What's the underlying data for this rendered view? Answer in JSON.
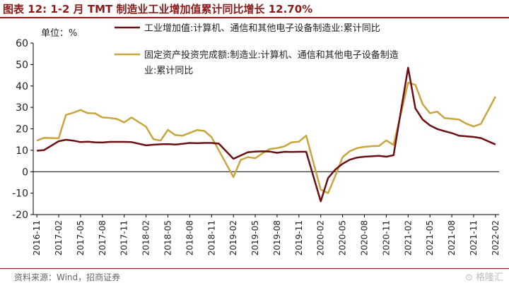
{
  "title": "图表 12:  1-2 月 TMT 制造业工业增加值累计同比增长 12.70%",
  "source": "资料来源：Wind，招商证券",
  "watermark": "⊙ 格隆汇",
  "colors": {
    "series1": "#6B0F13",
    "series2": "#C9A53E",
    "accent": "#8B1A1A"
  },
  "chart_data": {
    "type": "line",
    "ylabel": "单位：%",
    "ylim": [
      -20,
      60
    ],
    "yticks": [
      -20,
      -10,
      0,
      10,
      20,
      30,
      40,
      50,
      60
    ],
    "xticks": [
      "2016-11",
      "2017-02",
      "2017-05",
      "2017-08",
      "2017-11",
      "2018-02",
      "2018-05",
      "2018-08",
      "2018-11",
      "2019-02",
      "2019-05",
      "2019-08",
      "2019-11",
      "2020-02",
      "2020-05",
      "2020-08",
      "2020-11",
      "2021-02",
      "2021-05",
      "2021-08",
      "2021-11",
      "2022-02"
    ],
    "legend_position": "top",
    "x": [
      "2016-11",
      "2016-12",
      "2017-01",
      "2017-02",
      "2017-03",
      "2017-04",
      "2017-05",
      "2017-06",
      "2017-07",
      "2017-08",
      "2017-09",
      "2017-10",
      "2017-11",
      "2017-12",
      "2018-01",
      "2018-02",
      "2018-03",
      "2018-04",
      "2018-05",
      "2018-06",
      "2018-07",
      "2018-08",
      "2018-09",
      "2018-10",
      "2018-11",
      "2018-12",
      "2019-01",
      "2019-02",
      "2019-03",
      "2019-04",
      "2019-05",
      "2019-06",
      "2019-07",
      "2019-08",
      "2019-09",
      "2019-10",
      "2019-11",
      "2019-12",
      "2020-01",
      "2020-02",
      "2020-03",
      "2020-04",
      "2020-05",
      "2020-06",
      "2020-07",
      "2020-08",
      "2020-09",
      "2020-10",
      "2020-11",
      "2020-12",
      "2021-01",
      "2021-02",
      "2021-03",
      "2021-04",
      "2021-05",
      "2021-06",
      "2021-07",
      "2021-08",
      "2021-09",
      "2021-10",
      "2021-11",
      "2021-12",
      "2022-01",
      "2022-02"
    ],
    "series": [
      {
        "name": "工业增加值:计算机、通信和其他电子设备制造业:累计同比",
        "values": [
          9.8,
          10.1,
          null,
          14.2,
          14.9,
          14.5,
          13.8,
          14.0,
          13.7,
          13.6,
          13.9,
          13.9,
          13.9,
          13.8,
          null,
          12.3,
          12.6,
          12.8,
          12.9,
          12.7,
          13.0,
          13.4,
          13.3,
          13.4,
          13.4,
          13.1,
          null,
          6.0,
          7.6,
          9.1,
          9.4,
          9.5,
          9.4,
          8.8,
          9.3,
          9.2,
          9.3,
          9.3,
          null,
          -13.8,
          -3.0,
          1.0,
          3.7,
          5.6,
          6.6,
          7.0,
          7.2,
          7.4,
          7.0,
          7.7,
          null,
          48.5,
          29.5,
          24.3,
          21.6,
          19.9,
          18.9,
          18.0,
          16.8,
          16.5,
          16.2,
          15.7,
          null,
          12.7
        ]
      },
      {
        "name": "固定资产投资完成额:制造业:计算机、通信和其他电子设备制造业:累计同比",
        "values": [
          14.5,
          15.8,
          null,
          15.6,
          26.5,
          27.5,
          28.8,
          27.3,
          27.2,
          25.3,
          25.1,
          24.6,
          23.0,
          25.3,
          null,
          21.0,
          15.2,
          14.5,
          19.5,
          17.1,
          16.8,
          18.1,
          19.4,
          19.0,
          16.1,
          null,
          null,
          -2.5,
          5.5,
          6.8,
          6.3,
          8.6,
          10.6,
          11.0,
          11.8,
          13.7,
          14.0,
          16.8,
          null,
          -8.3,
          -10.0,
          -2.0,
          6.8,
          9.6,
          11.0,
          11.6,
          11.9,
          12.0,
          14.6,
          12.5,
          null,
          41.5,
          40.5,
          31.5,
          27.3,
          28.0,
          25.0,
          24.7,
          24.3,
          22.4,
          21.1,
          22.3,
          null,
          35.0
        ]
      }
    ]
  }
}
